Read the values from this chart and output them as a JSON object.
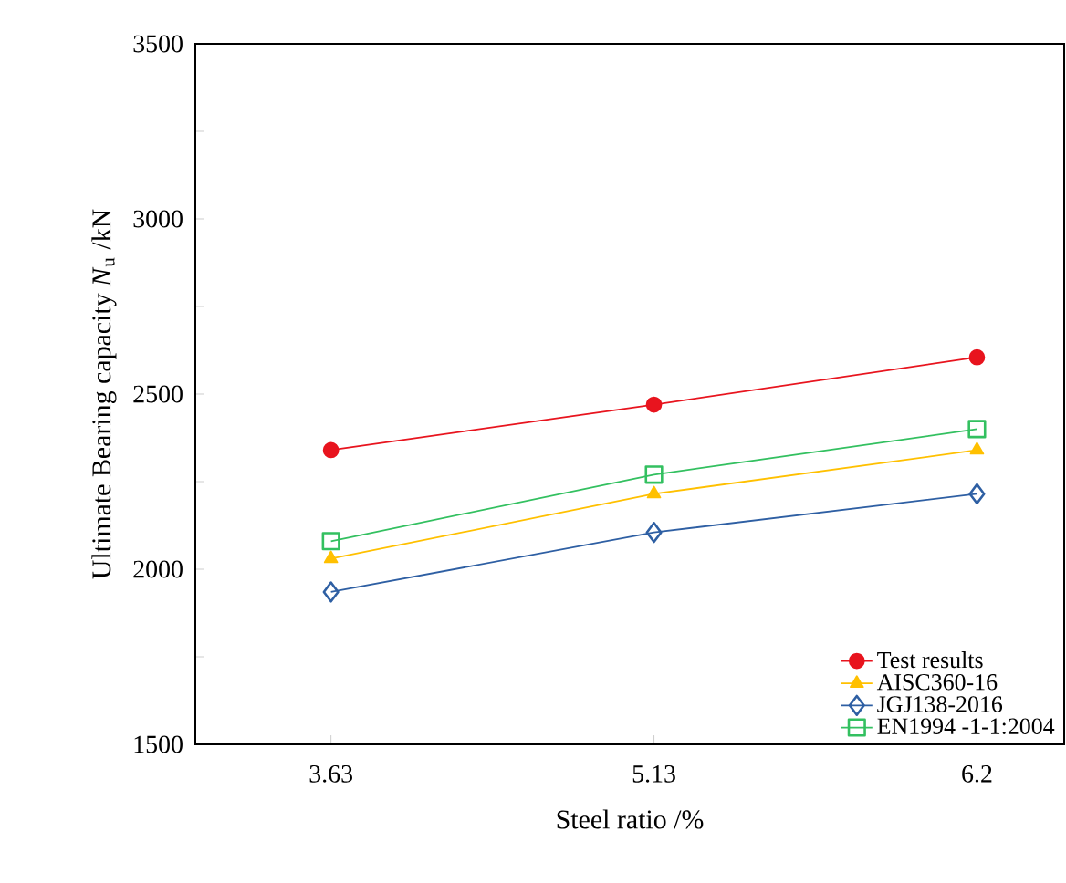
{
  "chart_data": {
    "type": "line",
    "xlabel": "Steel ratio /%",
    "ylabel": "Ultimate Bearing capacity *N*$_{u}$ /kN",
    "categories": [
      "3.63",
      "5.13",
      "6.2"
    ],
    "series": [
      {
        "name": "Test results",
        "color": "#e8141e",
        "marker": "circle",
        "values": [
          2340,
          2470,
          2605
        ]
      },
      {
        "name": "AISC360-16",
        "color": "#ffc000",
        "marker": "triangle",
        "values": [
          2030,
          2215,
          2340
        ]
      },
      {
        "name": "JGJ138-2016",
        "color": "#2e5fa3",
        "marker": "diamond",
        "values": [
          1935,
          2105,
          2215
        ]
      },
      {
        "name": "EN1994 -1-1:2004",
        "color": "#33c060",
        "marker": "square",
        "values": [
          2080,
          2270,
          2400
        ]
      }
    ],
    "ylim": [
      1500,
      3500
    ],
    "yticks": [
      1500,
      {
        "value": 1750,
        "label": null
      },
      2000,
      {
        "value": 2250,
        "label": null
      },
      2500,
      {
        "value": 2750,
        "label": null
      },
      3000,
      {
        "value": 3250,
        "label": null
      },
      3500
    ],
    "grid": false,
    "legend": "bottom right"
  }
}
